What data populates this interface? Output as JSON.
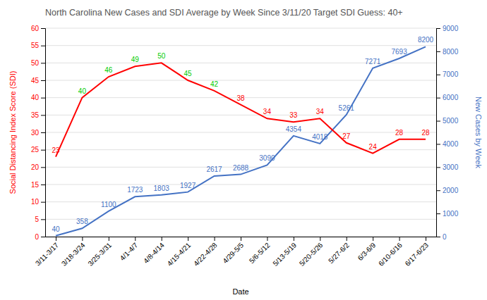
{
  "chart_data": {
    "type": "line",
    "title": "North Carolina New Cases and SDI Average by Week Since 3/11/20 Target SDI Guess: 40+",
    "xlabel": "Date",
    "ylabel": "Social Distancing Index Score (SDI)",
    "y2label": "New Cases by Week",
    "categories": [
      "3/11-3/17",
      "3/18-3/24",
      "3/25-3/31",
      "4/1-4/7",
      "4/8-4/14",
      "4/15-4/21",
      "4/22-4/28",
      "4/29-5/5",
      "5/6-5/12",
      "5/13-5/19",
      "5/20-5/26",
      "5/27-6/2",
      "6/3-6/9",
      "6/10-6/16",
      "6/17-6/23"
    ],
    "series": [
      {
        "color": "#ff0000",
        "values": [
          23,
          40,
          46,
          49,
          50,
          45,
          42,
          38,
          34,
          33,
          34,
          27,
          24,
          28,
          28
        ],
        "colors": [
          "#ff0000",
          "#00cc00",
          "#00cc00",
          "#00cc00",
          "#00cc00",
          "#00cc00",
          "#00cc00",
          "#ff0000",
          "#ff0000",
          "#ff0000",
          "#ff0000",
          "#ff0000",
          "#ff0000",
          "#ff0000",
          "#ff0000"
        ]
      },
      {
        "color": "#4472c4",
        "axis": "y2",
        "values": [
          40,
          358,
          1100,
          1723,
          1803,
          1927,
          2617,
          2688,
          3090,
          4354,
          4018,
          5261,
          7271,
          7693,
          8200
        ]
      }
    ],
    "data_labels": true,
    "ylim": [
      0,
      60
    ],
    "yticks": [
      0,
      5,
      10,
      15,
      20,
      25,
      30,
      35,
      40,
      45,
      50,
      55,
      60
    ],
    "y2lim": [
      0,
      9000
    ],
    "y2ticks": [
      0,
      1000,
      2000,
      3000,
      4000,
      5000,
      6000,
      7000,
      8000,
      9000
    ],
    "grid": true
  }
}
